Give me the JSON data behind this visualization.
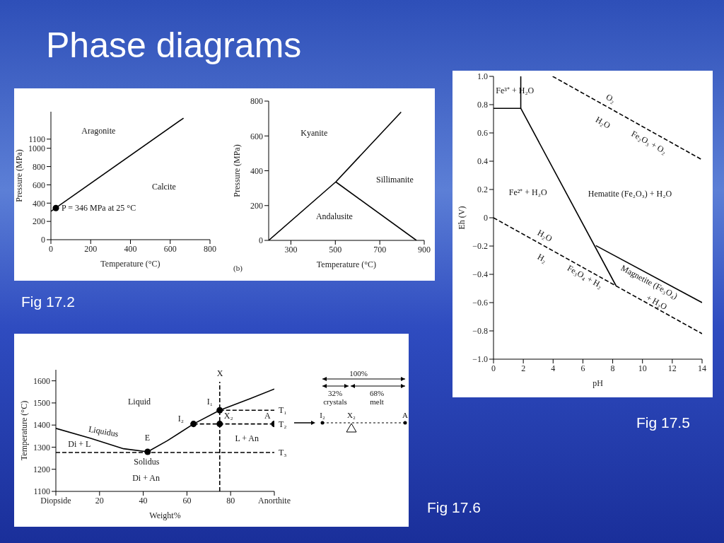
{
  "chart_data": [
    {
      "type": "line",
      "title": "Phase diagrams",
      "xlabel": "Temperature (°C)",
      "ylabel": "Pressure (MPa)",
      "xlim": [
        0,
        800
      ],
      "xticks": [
        0,
        200,
        400,
        600,
        800
      ],
      "ylim": [
        0,
        1400
      ],
      "yticks": [
        0,
        200,
        400,
        600,
        800,
        1000,
        1100
      ],
      "marker": "none",
      "line_style": "solid",
      "series": [
        {
          "x": [
            0,
            667
          ],
          "values": [
            310,
            1330
          ],
          "color": "#000000"
        },
        {
          "type": "scatter",
          "x": [
            25
          ],
          "values": [
            346
          ],
          "color": "#000000",
          "marker": "circle"
        }
      ],
      "annotations": [
        {
          "text": "P = 346 MPa at 25 °C",
          "x": 25,
          "y": 346
        },
        "Aragonite",
        "Calcite",
        "Fig 17.2"
      ]
    },
    {
      "type": "line",
      "xlabel": "Temperature (°C)",
      "ylabel": "Pressure (MPa)",
      "xlim": [
        200,
        900
      ],
      "xticks": [
        300,
        500,
        700,
        900
      ],
      "ylim": [
        0,
        800
      ],
      "yticks": [
        0,
        200,
        400,
        600,
        800
      ],
      "marker": "none",
      "line_style": "solid",
      "series": [
        {
          "x": [
            200,
            502,
            796
          ],
          "values": [
            0,
            336,
            737
          ],
          "color": "#000000"
        },
        {
          "x": [
            502,
            865
          ],
          "values": [
            336,
            0
          ],
          "color": "#000000"
        }
      ],
      "annotations": [
        "Kyanite",
        "Sillimanite",
        "Andalusite",
        "(b)"
      ]
    },
    {
      "type": "line",
      "xlabel": "pH",
      "ylabel": "Eh (V)",
      "xlim": [
        0,
        14
      ],
      "xticks": [
        0,
        2,
        4,
        6,
        8,
        10,
        12,
        14
      ],
      "ylim": [
        -1,
        1
      ],
      "yticks": [
        {
          "value": -1,
          "label": "−1.0"
        },
        {
          "value": -0.8,
          "label": "−0.8"
        },
        {
          "value": -0.6,
          "label": "−0.6"
        },
        {
          "value": -0.4,
          "label": "−0.4"
        },
        {
          "value": -0.2,
          "label": "−0.2"
        },
        0,
        0.2,
        0.4,
        0.6,
        0.8,
        {
          "value": 1,
          "label": "1.0"
        }
      ],
      "marker": "none",
      "line_style": "solid",
      "series": [
        {
          "x": [
            0,
            1.83,
            8.22
          ],
          "values": [
            0.774,
            0.774,
            -0.48
          ],
          "color": "#000000"
        },
        {
          "x": [
            1.83,
            1.83
          ],
          "values": [
            0.774,
            1
          ],
          "color": "#000000"
        },
        {
          "x": [
            6.87,
            14
          ],
          "values": [
            -0.197,
            -0.6
          ],
          "color": "#000000"
        },
        {
          "x": [
            3.97,
            14
          ],
          "values": [
            1,
            0.41
          ],
          "color": "#000000",
          "line_style": "dashed"
        },
        {
          "x": [
            0,
            14
          ],
          "values": [
            0,
            -0.82
          ],
          "color": "#000000",
          "line_style": "dashed"
        }
      ],
      "annotations": [
        "Fe³⁺ + H₂O",
        "O₂",
        "H₂O",
        "Fe₂O₃ + O₂",
        "Fe²⁺ + H₂O",
        "Hematite (Fe₂O₃) + H₂O",
        "H₂O",
        "H₂",
        "Fe₃O₄ + H₂",
        "Magnetite (Fe₃O₄)",
        "+ H₂O",
        "Fig 17.5"
      ]
    },
    {
      "type": "line",
      "xlabel": "Weight%",
      "ylabel": "Temperature (°C)",
      "xlim": [
        0,
        100
      ],
      "xticks": [
        {
          "value": 0,
          "label": "Diopside"
        },
        20,
        40,
        60,
        80,
        {
          "value": 100,
          "label": "Anorthite"
        }
      ],
      "ylim": [
        1100,
        1650
      ],
      "yticks": [
        1100,
        1200,
        1300,
        1400,
        1500,
        1600
      ],
      "marker": "none",
      "line_style": "solid",
      "series": [
        {
          "x": [
            0,
            16,
            31,
            42,
            51,
            63,
            75,
            89,
            100
          ],
          "values": [
            1385,
            1340,
            1293,
            1279,
            1329,
            1405,
            1467,
            1520,
            1563
          ],
          "color": "#000000"
        },
        {
          "x": [
            75,
            100
          ],
          "values": [
            1467,
            1467
          ],
          "color": "#000000",
          "line_style": "dashed"
        },
        {
          "x": [
            63,
            100
          ],
          "values": [
            1405,
            1405
          ],
          "color": "#000000",
          "line_style": "dashed"
        },
        {
          "x": [
            0,
            100
          ],
          "values": [
            1276,
            1276
          ],
          "color": "#000000",
          "line_style": "dashed"
        },
        {
          "x": [
            75,
            75
          ],
          "values": [
            1100,
            1596
          ],
          "color": "#000000",
          "line_style": "dashed"
        },
        {
          "type": "scatter",
          "x": [
            42,
            63,
            75,
            75,
            100
          ],
          "values": [
            1279,
            1405,
            1405,
            1467,
            1405
          ],
          "color": "#000000",
          "marker": "circle"
        }
      ],
      "annotations": [
        {
          "text": "E",
          "x": 42,
          "y": 1279
        },
        {
          "text": "I₂",
          "x": 63,
          "y": 1405
        },
        {
          "text": "I₁",
          "x": 75,
          "y": 1467
        },
        {
          "text": "X",
          "x": 75,
          "y": 1596
        },
        {
          "text": "X₂",
          "x": 75,
          "y": 1405
        },
        {
          "text": "A",
          "x": 100,
          "y": 1405
        },
        {
          "text": "T₁",
          "x": 100,
          "y": 1467
        },
        {
          "text": "T₂",
          "x": 100,
          "y": 1405
        },
        {
          "text": "T₃",
          "x": 100,
          "y": 1276
        },
        "Liquid",
        "Liquidus",
        "Di + L",
        "Solidus",
        "Di + An",
        "L + An",
        "Fig 17.6"
      ]
    },
    {
      "type": "other",
      "annotations": [
        "100%",
        "32%",
        "crystals",
        "68%",
        "melt",
        "I₂",
        "X₂",
        "A"
      ]
    }
  ]
}
